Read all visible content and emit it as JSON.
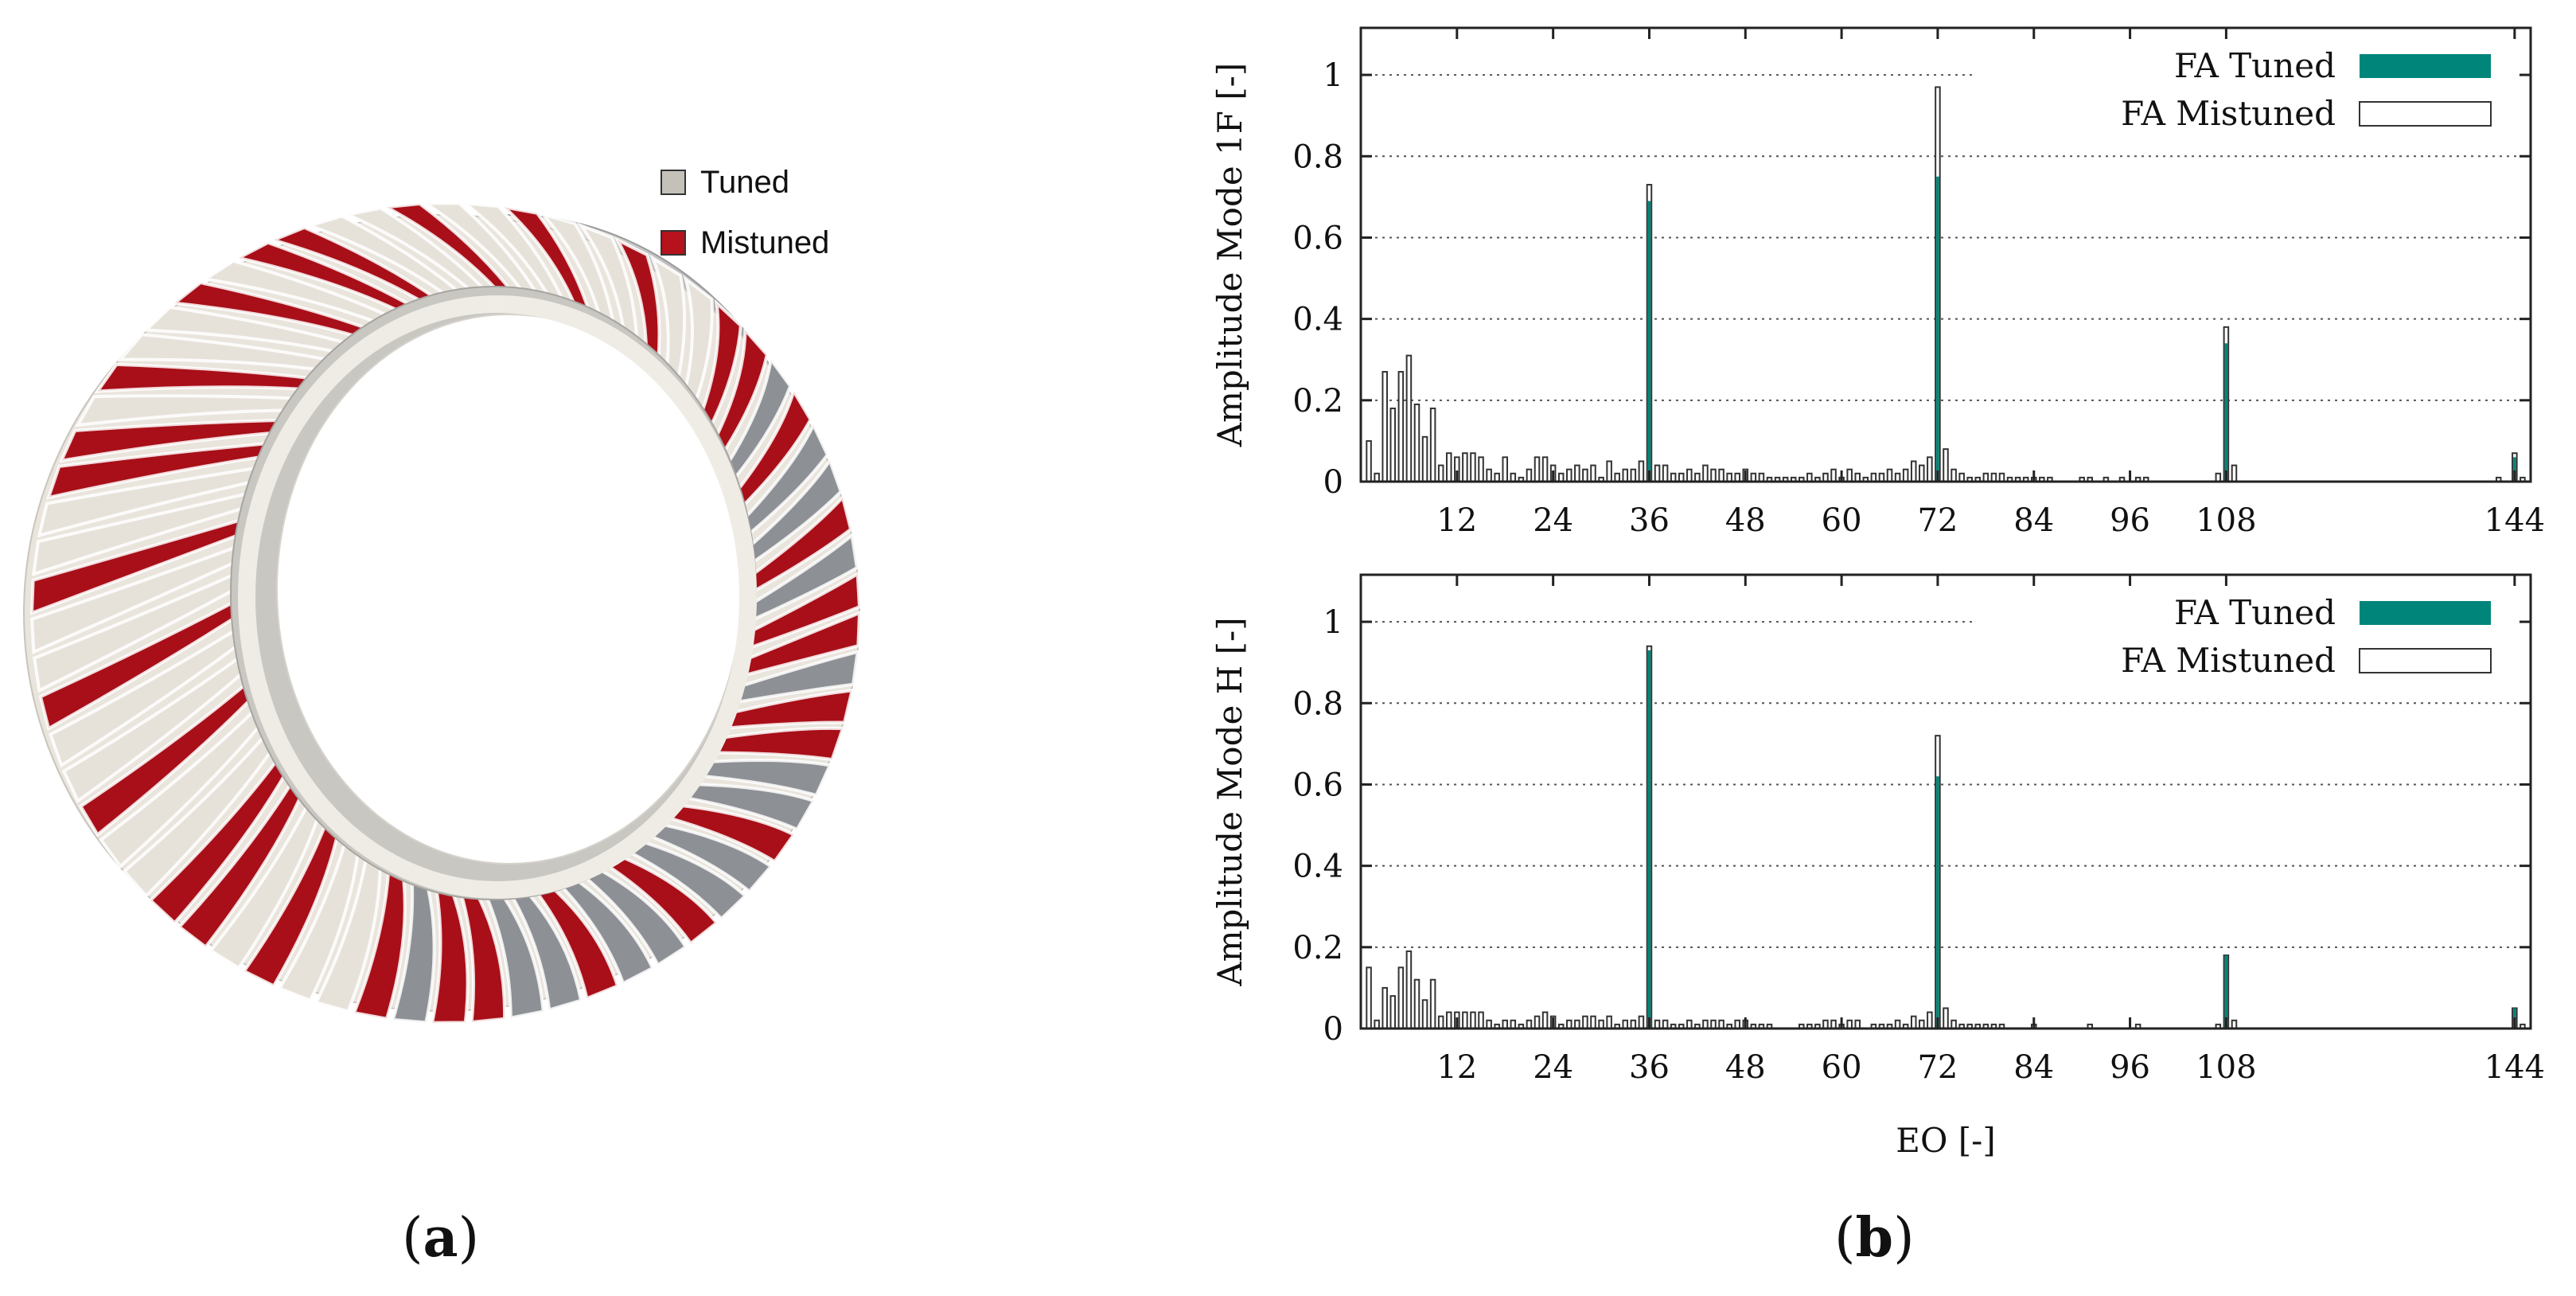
{
  "panel_a": {
    "label_open": "(",
    "label_letter": "a",
    "label_close": ")",
    "legend": [
      {
        "label": "Tuned",
        "color": "#c4c1b9"
      },
      {
        "label": "Mistuned",
        "color": "#b5121b"
      }
    ],
    "colors": {
      "tuned": "#e6e2da",
      "tuned_dark": "#8d9094",
      "mistuned": "#a80f18"
    }
  },
  "panel_b": {
    "label_open": "(",
    "label_letter": "b",
    "label_close": ")"
  },
  "chart_data": [
    {
      "type": "bar",
      "title": "",
      "xlabel": "",
      "ylabel": "Amplitude Mode 1F [-]",
      "xlim": [
        0,
        146
      ],
      "ylim": [
        0,
        1.1
      ],
      "xticks": [
        12,
        24,
        36,
        48,
        60,
        72,
        84,
        96,
        108,
        144
      ],
      "yticks": [
        0,
        0.2,
        0.4,
        0.6,
        0.8,
        1
      ],
      "ytick_labels": [
        "0",
        "0.2",
        "0.4",
        "0.6",
        "0.8",
        "1"
      ],
      "colors": {
        "tuned": "#00857a",
        "mistuned_fill": "#ffffff",
        "mistuned_edge": "#333333"
      },
      "legend": [
        {
          "label": "FA Tuned",
          "style": "filled"
        },
        {
          "label": "FA Mistuned",
          "style": "outline"
        }
      ],
      "series": [
        {
          "name": "FA Tuned",
          "points": [
            [
              36,
              0.69
            ],
            [
              72,
              0.75
            ],
            [
              108,
              0.34
            ],
            [
              144,
              0.06
            ]
          ]
        },
        {
          "name": "FA Mistuned",
          "points": [
            [
              1,
              0.1
            ],
            [
              2,
              0.02
            ],
            [
              3,
              0.27
            ],
            [
              4,
              0.18
            ],
            [
              5,
              0.27
            ],
            [
              6,
              0.31
            ],
            [
              7,
              0.19
            ],
            [
              8,
              0.11
            ],
            [
              9,
              0.18
            ],
            [
              10,
              0.04
            ],
            [
              11,
              0.07
            ],
            [
              12,
              0.06
            ],
            [
              13,
              0.07
            ],
            [
              14,
              0.07
            ],
            [
              15,
              0.06
            ],
            [
              16,
              0.03
            ],
            [
              17,
              0.02
            ],
            [
              18,
              0.06
            ],
            [
              19,
              0.02
            ],
            [
              20,
              0.01
            ],
            [
              21,
              0.03
            ],
            [
              22,
              0.06
            ],
            [
              23,
              0.06
            ],
            [
              24,
              0.04
            ],
            [
              25,
              0.02
            ],
            [
              26,
              0.03
            ],
            [
              27,
              0.04
            ],
            [
              28,
              0.03
            ],
            [
              29,
              0.04
            ],
            [
              30,
              0.01
            ],
            [
              31,
              0.05
            ],
            [
              32,
              0.02
            ],
            [
              33,
              0.03
            ],
            [
              34,
              0.03
            ],
            [
              35,
              0.05
            ],
            [
              36,
              0.73
            ],
            [
              37,
              0.04
            ],
            [
              38,
              0.04
            ],
            [
              39,
              0.02
            ],
            [
              40,
              0.02
            ],
            [
              41,
              0.03
            ],
            [
              42,
              0.02
            ],
            [
              43,
              0.04
            ],
            [
              44,
              0.03
            ],
            [
              45,
              0.03
            ],
            [
              46,
              0.02
            ],
            [
              47,
              0.02
            ],
            [
              48,
              0.03
            ],
            [
              49,
              0.02
            ],
            [
              50,
              0.02
            ],
            [
              51,
              0.01
            ],
            [
              52,
              0.01
            ],
            [
              53,
              0.01
            ],
            [
              54,
              0.01
            ],
            [
              55,
              0.01
            ],
            [
              56,
              0.02
            ],
            [
              57,
              0.01
            ],
            [
              58,
              0.02
            ],
            [
              59,
              0.03
            ],
            [
              60,
              0.01
            ],
            [
              61,
              0.03
            ],
            [
              62,
              0.02
            ],
            [
              63,
              0.01
            ],
            [
              64,
              0.02
            ],
            [
              65,
              0.02
            ],
            [
              66,
              0.03
            ],
            [
              67,
              0.02
            ],
            [
              68,
              0.03
            ],
            [
              69,
              0.05
            ],
            [
              70,
              0.04
            ],
            [
              71,
              0.06
            ],
            [
              72,
              0.97
            ],
            [
              73,
              0.08
            ],
            [
              74,
              0.03
            ],
            [
              75,
              0.02
            ],
            [
              76,
              0.01
            ],
            [
              77,
              0.01
            ],
            [
              78,
              0.02
            ],
            [
              79,
              0.02
            ],
            [
              80,
              0.02
            ],
            [
              81,
              0.01
            ],
            [
              82,
              0.01
            ],
            [
              83,
              0.01
            ],
            [
              84,
              0.01
            ],
            [
              85,
              0.01
            ],
            [
              86,
              0.01
            ],
            [
              90,
              0.01
            ],
            [
              91,
              0.01
            ],
            [
              93,
              0.01
            ],
            [
              95,
              0.01
            ],
            [
              97,
              0.01
            ],
            [
              98,
              0.01
            ],
            [
              107,
              0.02
            ],
            [
              108,
              0.38
            ],
            [
              109,
              0.04
            ],
            [
              142,
              0.01
            ],
            [
              144,
              0.07
            ],
            [
              145,
              0.01
            ]
          ]
        }
      ]
    },
    {
      "type": "bar",
      "title": "",
      "xlabel": "EO [-]",
      "ylabel": "Amplitude Mode H [-]",
      "xlim": [
        0,
        146
      ],
      "ylim": [
        0,
        1.1
      ],
      "xticks": [
        12,
        24,
        36,
        48,
        60,
        72,
        84,
        96,
        108,
        144
      ],
      "yticks": [
        0,
        0.2,
        0.4,
        0.6,
        0.8,
        1
      ],
      "ytick_labels": [
        "0",
        "0.2",
        "0.4",
        "0.6",
        "0.8",
        "1"
      ],
      "colors": {
        "tuned": "#00857a",
        "mistuned_fill": "#ffffff",
        "mistuned_edge": "#333333"
      },
      "legend": [
        {
          "label": "FA Tuned",
          "style": "filled"
        },
        {
          "label": "FA Mistuned",
          "style": "outline"
        }
      ],
      "series": [
        {
          "name": "FA Tuned",
          "points": [
            [
              36,
              0.93
            ],
            [
              72,
              0.62
            ],
            [
              108,
              0.18
            ],
            [
              144,
              0.05
            ]
          ]
        },
        {
          "name": "FA Mistuned",
          "points": [
            [
              1,
              0.15
            ],
            [
              2,
              0.02
            ],
            [
              3,
              0.1
            ],
            [
              4,
              0.08
            ],
            [
              5,
              0.15
            ],
            [
              6,
              0.19
            ],
            [
              7,
              0.12
            ],
            [
              8,
              0.07
            ],
            [
              9,
              0.12
            ],
            [
              10,
              0.03
            ],
            [
              11,
              0.04
            ],
            [
              12,
              0.04
            ],
            [
              13,
              0.04
            ],
            [
              14,
              0.04
            ],
            [
              15,
              0.04
            ],
            [
              16,
              0.02
            ],
            [
              17,
              0.01
            ],
            [
              18,
              0.02
            ],
            [
              19,
              0.02
            ],
            [
              20,
              0.01
            ],
            [
              21,
              0.02
            ],
            [
              22,
              0.03
            ],
            [
              23,
              0.04
            ],
            [
              24,
              0.03
            ],
            [
              25,
              0.01
            ],
            [
              26,
              0.02
            ],
            [
              27,
              0.02
            ],
            [
              28,
              0.03
            ],
            [
              29,
              0.03
            ],
            [
              30,
              0.02
            ],
            [
              31,
              0.03
            ],
            [
              32,
              0.01
            ],
            [
              33,
              0.02
            ],
            [
              34,
              0.02
            ],
            [
              35,
              0.03
            ],
            [
              36,
              0.94
            ],
            [
              37,
              0.02
            ],
            [
              38,
              0.02
            ],
            [
              39,
              0.01
            ],
            [
              40,
              0.01
            ],
            [
              41,
              0.02
            ],
            [
              42,
              0.01
            ],
            [
              43,
              0.02
            ],
            [
              44,
              0.02
            ],
            [
              45,
              0.02
            ],
            [
              46,
              0.01
            ],
            [
              47,
              0.02
            ],
            [
              48,
              0.02
            ],
            [
              49,
              0.01
            ],
            [
              50,
              0.01
            ],
            [
              51,
              0.01
            ],
            [
              55,
              0.01
            ],
            [
              56,
              0.01
            ],
            [
              57,
              0.01
            ],
            [
              58,
              0.02
            ],
            [
              59,
              0.02
            ],
            [
              60,
              0.01
            ],
            [
              61,
              0.02
            ],
            [
              62,
              0.02
            ],
            [
              64,
              0.01
            ],
            [
              65,
              0.01
            ],
            [
              66,
              0.01
            ],
            [
              67,
              0.02
            ],
            [
              68,
              0.01
            ],
            [
              69,
              0.03
            ],
            [
              70,
              0.02
            ],
            [
              71,
              0.04
            ],
            [
              72,
              0.72
            ],
            [
              73,
              0.05
            ],
            [
              74,
              0.02
            ],
            [
              75,
              0.01
            ],
            [
              76,
              0.01
            ],
            [
              77,
              0.01
            ],
            [
              78,
              0.01
            ],
            [
              79,
              0.01
            ],
            [
              80,
              0.01
            ],
            [
              84,
              0.01
            ],
            [
              91,
              0.01
            ],
            [
              97,
              0.01
            ],
            [
              107,
              0.01
            ],
            [
              108,
              0.18
            ],
            [
              109,
              0.02
            ],
            [
              144,
              0.05
            ],
            [
              145,
              0.01
            ]
          ]
        }
      ]
    }
  ]
}
